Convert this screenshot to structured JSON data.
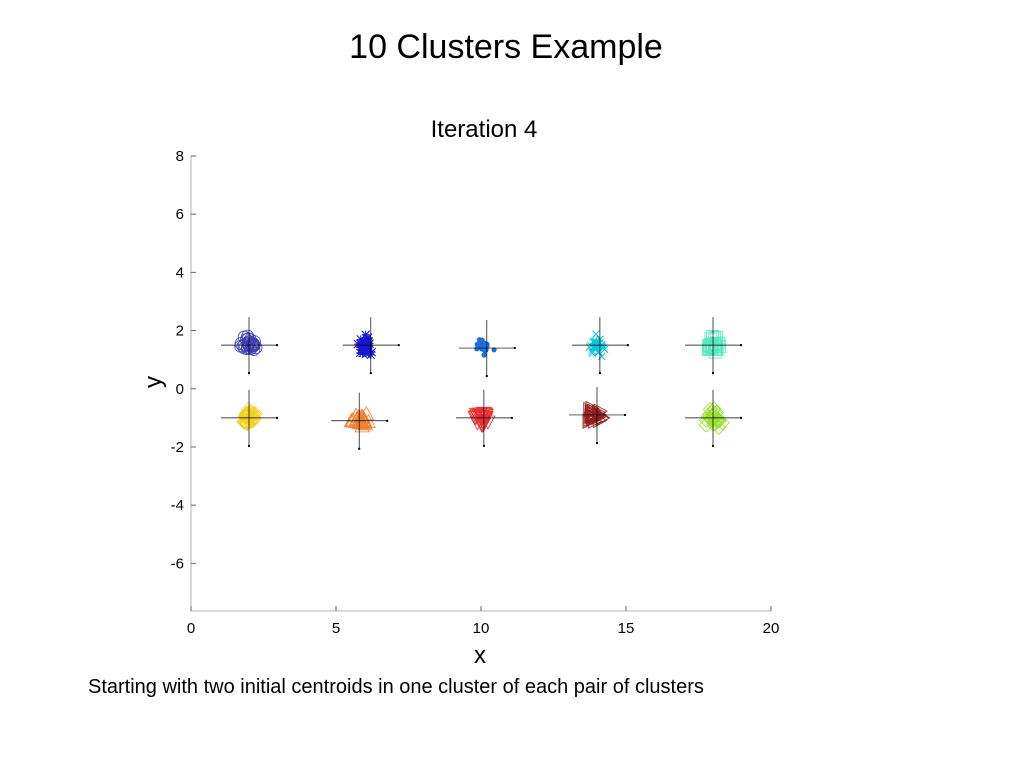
{
  "slide": {
    "title": "10 Clusters Example",
    "caption": "Starting with two initial centroids in one cluster of each pair of clusters"
  },
  "chart_data": {
    "type": "scatter",
    "title": "Iteration 4",
    "xlabel": "x",
    "ylabel": "y",
    "xlim": [
      0,
      20
    ],
    "ylim": [
      -7.5,
      8
    ],
    "xticks": [
      0,
      5,
      10,
      15,
      20
    ],
    "yticks": [
      -6,
      -4,
      -2,
      0,
      2,
      4,
      6,
      8
    ],
    "grid": false,
    "series": [
      {
        "color": "#3c3cb4",
        "marker": "circle-open",
        "center": [
          2,
          1.5
        ],
        "spread": [
          0.5,
          0.45
        ],
        "n": 30
      },
      {
        "color": "#1818d0",
        "marker": "asterisk-plus",
        "center": [
          6.0,
          1.5
        ],
        "spread": [
          0.4,
          0.5
        ],
        "n": 45
      },
      {
        "color": "#1f6fd8",
        "marker": "dot",
        "center": [
          10.1,
          1.45
        ],
        "spread": [
          0.45,
          0.4
        ],
        "n": 30
      },
      {
        "color": "#00c8e0",
        "marker": "x-plus",
        "center": [
          14,
          1.45
        ],
        "spread": [
          0.45,
          0.55
        ],
        "n": 30
      },
      {
        "color": "#55e8c0",
        "marker": "square-open",
        "center": [
          18,
          1.5
        ],
        "spread": [
          0.45,
          0.45
        ],
        "n": 30
      },
      {
        "color": "#f0d020",
        "marker": "diamond-open",
        "center": [
          2,
          -1.0
        ],
        "spread": [
          0.5,
          0.4
        ],
        "n": 30
      },
      {
        "color": "#f08030",
        "marker": "triangle-up-open",
        "center": [
          5.8,
          -1.1
        ],
        "spread": [
          0.55,
          0.35
        ],
        "n": 30
      },
      {
        "color": "#e83030",
        "marker": "triangle-down-open",
        "center": [
          10.0,
          -1.0
        ],
        "spread": [
          0.45,
          0.45
        ],
        "n": 30
      },
      {
        "color": "#902020",
        "marker": "triangle-right-open",
        "center": [
          13.9,
          -0.9
        ],
        "spread": [
          0.5,
          0.45
        ],
        "n": 30
      },
      {
        "color": "#98e030",
        "marker": "diamond-open",
        "center": [
          18.0,
          -1.0
        ],
        "spread": [
          0.45,
          0.45
        ],
        "n": 30
      }
    ],
    "centroids": [
      [
        2.0,
        1.5
      ],
      [
        6.2,
        1.5
      ],
      [
        10.2,
        1.4
      ],
      [
        14.1,
        1.5
      ],
      [
        18.0,
        1.5
      ],
      [
        2.0,
        -1.0
      ],
      [
        5.8,
        -1.1
      ],
      [
        10.1,
        -1.0
      ],
      [
        14.0,
        -0.9
      ],
      [
        18.0,
        -1.0
      ]
    ]
  }
}
